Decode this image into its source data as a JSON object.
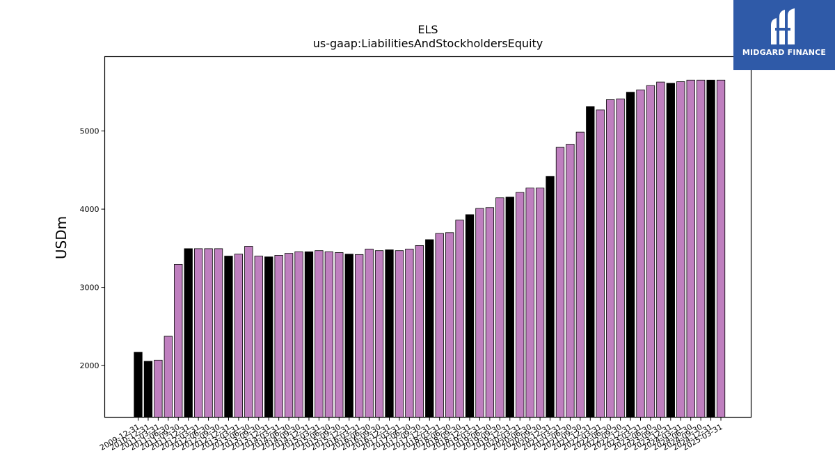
{
  "logo": {
    "text": "MIDGARD FINANCE",
    "icon": "midgard-logo-icon",
    "background": "#2f5aa8"
  },
  "chart_data": {
    "type": "bar",
    "title": "ELS",
    "subtitle": "us-gaap:LiabilitiesAndStockholdersEquity",
    "xlabel": "",
    "ylabel": "USDm",
    "ylim": [
      1340,
      5950
    ],
    "yticks": [
      2000,
      3000,
      4000,
      5000
    ],
    "grid": false,
    "legend": "none",
    "colors": {
      "annual": "#000000",
      "quarter": "#bf7fbf",
      "edge": "#000000"
    },
    "categories": [
      "2009-12-31",
      "2010-12-31",
      "2011-03-31",
      "2011-06-30",
      "2011-09-30",
      "2011-12-31",
      "2012-03-31",
      "2012-06-30",
      "2012-09-30",
      "2012-12-31",
      "2013-03-31",
      "2013-06-30",
      "2013-09-30",
      "2013-12-31",
      "2014-03-31",
      "2014-06-30",
      "2014-09-30",
      "2014-12-31",
      "2015-03-31",
      "2015-06-30",
      "2015-09-30",
      "2015-12-31",
      "2016-03-31",
      "2016-06-30",
      "2016-09-30",
      "2016-12-31",
      "2017-03-31",
      "2017-06-30",
      "2017-09-30",
      "2017-12-31",
      "2018-03-31",
      "2018-06-30",
      "2018-09-30",
      "2018-12-31",
      "2019-03-31",
      "2019-06-30",
      "2019-09-30",
      "2019-12-31",
      "2020-03-31",
      "2020-06-30",
      "2020-09-30",
      "2020-12-31",
      "2021-03-31",
      "2021-06-30",
      "2021-09-30",
      "2021-12-31",
      "2022-03-31",
      "2022-06-30",
      "2022-09-30",
      "2022-12-31",
      "2023-03-31",
      "2023-06-30",
      "2023-09-30",
      "2023-12-31",
      "2024-03-31",
      "2024-06-30",
      "2024-09-30",
      "2024-12-31",
      "2025-03-31"
    ],
    "values": [
      2170,
      2055,
      2070,
      2375,
      3295,
      3495,
      3495,
      3495,
      3495,
      3400,
      3425,
      3525,
      3400,
      3390,
      3410,
      3435,
      3455,
      3455,
      3470,
      3455,
      3445,
      3425,
      3420,
      3490,
      3470,
      3480,
      3470,
      3490,
      3535,
      3610,
      3690,
      3700,
      3860,
      3930,
      4010,
      4020,
      4145,
      4155,
      4215,
      4270,
      4270,
      4420,
      4790,
      4830,
      4985,
      5310,
      5270,
      5400,
      5410,
      5495,
      5525,
      5580,
      5625,
      5610,
      5630,
      5650,
      5650,
      5650,
      5650
    ],
    "annual_flags": [
      true,
      true,
      false,
      false,
      false,
      true,
      false,
      false,
      false,
      true,
      false,
      false,
      false,
      true,
      false,
      false,
      false,
      true,
      false,
      false,
      false,
      true,
      false,
      false,
      false,
      true,
      false,
      false,
      false,
      true,
      false,
      false,
      false,
      true,
      false,
      false,
      false,
      true,
      false,
      false,
      false,
      true,
      false,
      false,
      false,
      true,
      false,
      false,
      false,
      true,
      false,
      false,
      false,
      true,
      false,
      false,
      false,
      true,
      false
    ]
  }
}
